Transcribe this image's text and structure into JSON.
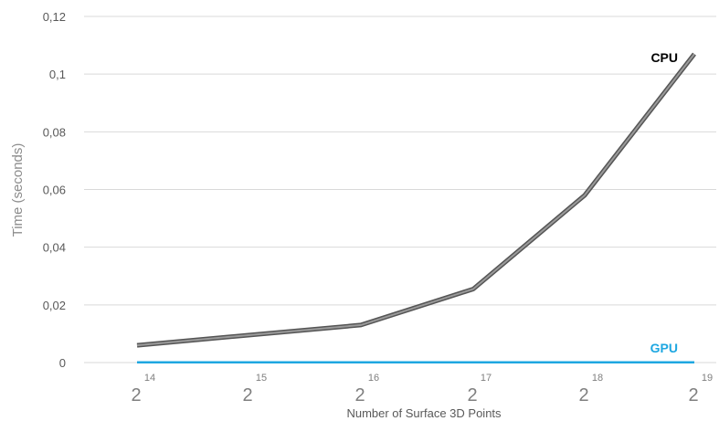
{
  "chart_data": {
    "type": "line",
    "ylabel": "Time (seconds)",
    "xlabel": "Number of Surface 3D Points",
    "ylim": [
      0,
      0.12
    ],
    "y_ticks": [
      "0",
      "0,02",
      "0,04",
      "0,06",
      "0,08",
      "0,1",
      "0,12"
    ],
    "y_tick_values": [
      0,
      0.02,
      0.04,
      0.06,
      0.08,
      0.1,
      0.12
    ],
    "grid": true,
    "x": [
      {
        "base": "2",
        "exp": "14"
      },
      {
        "base": "2",
        "exp": "15"
      },
      {
        "base": "2",
        "exp": "16"
      },
      {
        "base": "2",
        "exp": "17"
      },
      {
        "base": "2",
        "exp": "18"
      },
      {
        "base": "2",
        "exp": "19"
      }
    ],
    "series": [
      {
        "name": "CPU",
        "color": "#7f7f7f",
        "label_color": "#000000",
        "values": [
          0.006,
          0.0095,
          0.013,
          0.0255,
          0.058,
          0.107
        ]
      },
      {
        "name": "GPU",
        "color": "#1ea7e1",
        "label_color": "#1ea7e1",
        "values": [
          0.0001,
          0.0001,
          0.0001,
          0.0001,
          0.0001,
          0.0001
        ]
      }
    ]
  }
}
